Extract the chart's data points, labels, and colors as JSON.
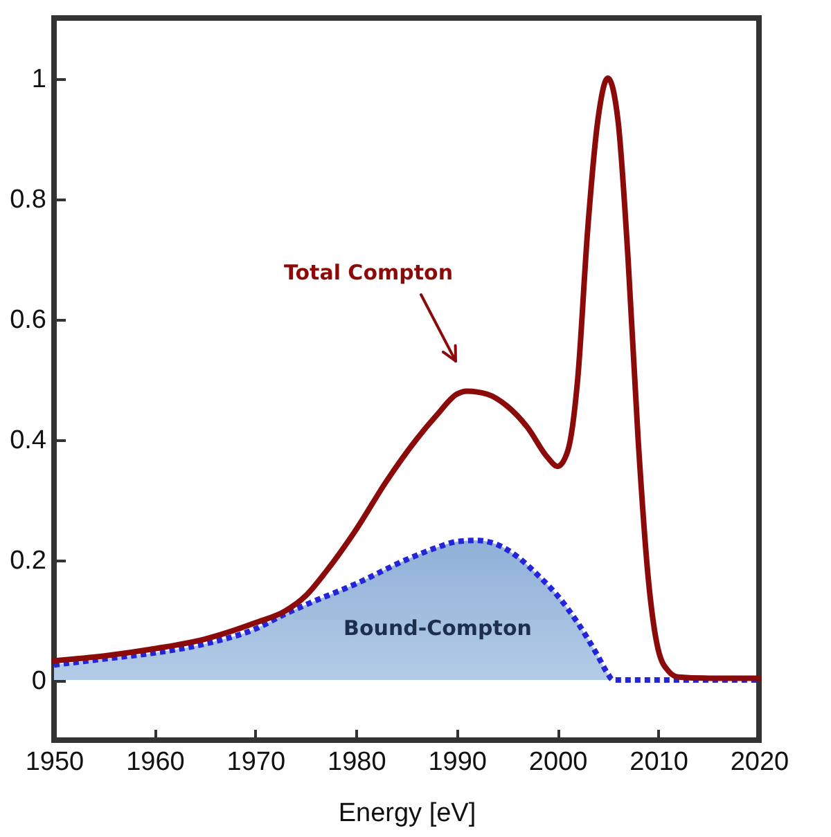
{
  "chart_data": {
    "type": "line",
    "xlabel": "Energy [eV]",
    "xlim": [
      1950,
      2020
    ],
    "xticks": [
      1950,
      1960,
      1970,
      1980,
      1990,
      2000,
      2010,
      2020
    ],
    "ylim": [
      -0.1,
      1.1
    ],
    "yticks": [
      0,
      0.2,
      0.4,
      0.6,
      0.8,
      1
    ],
    "grid": false,
    "series": [
      {
        "name": "Bound-Compton",
        "type": "area",
        "line_style": "dotted",
        "color": "#2424d8",
        "x": [
          1950,
          1955,
          1960,
          1965,
          1970,
          1973,
          1975,
          1980,
          1985,
          1988,
          1990,
          1992,
          1994,
          1996,
          1998,
          2000,
          2002,
          2004,
          2005,
          2005.5,
          2010,
          2020
        ],
        "values": [
          0.025,
          0.035,
          0.045,
          0.06,
          0.085,
          0.11,
          0.125,
          0.16,
          0.2,
          0.22,
          0.23,
          0.232,
          0.225,
          0.205,
          0.175,
          0.14,
          0.095,
          0.04,
          0.01,
          0,
          0,
          0
        ]
      },
      {
        "name": "Total Compton",
        "line_style": "solid",
        "color": "#8b0a0a",
        "x": [
          1950,
          1955,
          1960,
          1965,
          1970,
          1973,
          1975,
          1977,
          1980,
          1983,
          1986,
          1988,
          1990,
          1991,
          1993,
          1995,
          1997,
          1999,
          2000,
          2001,
          2002,
          2003,
          2004,
          2005,
          2006,
          2007,
          2008,
          2009,
          2010,
          2011,
          2012,
          2015,
          2020
        ],
        "values": [
          0.032,
          0.04,
          0.052,
          0.068,
          0.095,
          0.115,
          0.14,
          0.18,
          0.25,
          0.33,
          0.4,
          0.44,
          0.475,
          0.48,
          0.475,
          0.455,
          0.42,
          0.37,
          0.355,
          0.38,
          0.5,
          0.75,
          0.93,
          1,
          0.93,
          0.7,
          0.4,
          0.17,
          0.05,
          0.015,
          0.005,
          0.003,
          0.003
        ]
      }
    ]
  }
}
